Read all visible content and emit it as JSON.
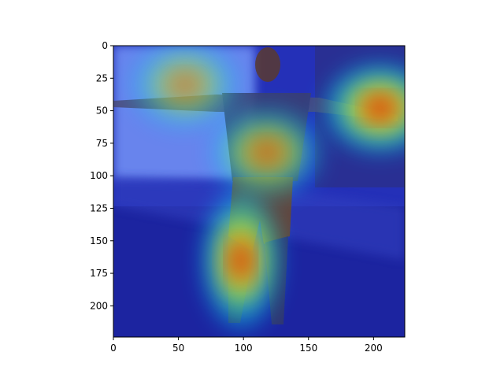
{
  "chart_data": {
    "type": "heatmap",
    "title": "",
    "xlabel": "",
    "ylabel": "",
    "xlim": [
      0,
      224
    ],
    "ylim": [
      224,
      0
    ],
    "xticks": [
      0,
      50,
      100,
      150,
      200
    ],
    "yticks": [
      0,
      25,
      50,
      75,
      100,
      125,
      150,
      175,
      200
    ],
    "colormap": "jet",
    "grid": false,
    "hotspots": [
      {
        "x": 205,
        "y": 48,
        "intensity": 1.0
      },
      {
        "x": 98,
        "y": 165,
        "intensity": 0.95
      },
      {
        "x": 118,
        "y": 82,
        "intensity": 0.7
      },
      {
        "x": 55,
        "y": 30,
        "intensity": 0.55
      }
    ]
  }
}
